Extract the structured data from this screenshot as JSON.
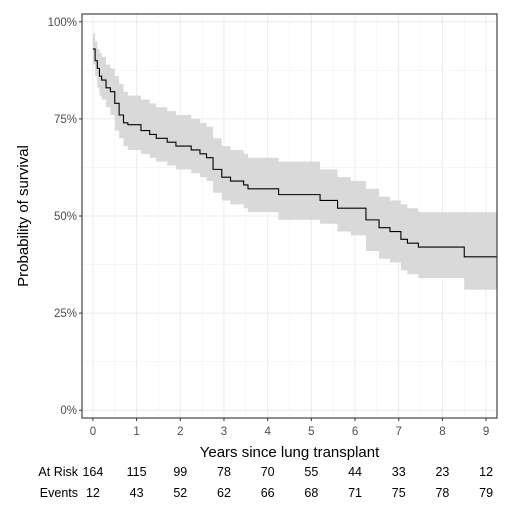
{
  "chart_data": {
    "type": "line",
    "subtype": "kaplan-meier survival curve with confidence band",
    "xlabel": "Years since lung transplant",
    "ylabel": "Probability of survival",
    "xlim": [
      -0.25,
      9.25
    ],
    "ylim": [
      -0.02,
      1.02
    ],
    "x_ticks": [
      0,
      1,
      2,
      3,
      4,
      5,
      6,
      7,
      8,
      9
    ],
    "y_ticks": [
      {
        "value": 0,
        "label": "0%"
      },
      {
        "value": 0.25,
        "label": "25%"
      },
      {
        "value": 0.5,
        "label": "50%"
      },
      {
        "value": 0.75,
        "label": "75%"
      },
      {
        "value": 1,
        "label": "100%"
      }
    ],
    "grid": true,
    "series": [
      {
        "color": "#000000",
        "ci_color": "#d9d9d9",
        "points": [
          {
            "t": 0.0,
            "s": 0.93,
            "lo": 0.89,
            "hi": 0.97
          },
          {
            "t": 0.05,
            "s": 0.9,
            "lo": 0.86,
            "hi": 0.95
          },
          {
            "t": 0.1,
            "s": 0.88,
            "lo": 0.83,
            "hi": 0.93
          },
          {
            "t": 0.15,
            "s": 0.86,
            "lo": 0.81,
            "hi": 0.92
          },
          {
            "t": 0.2,
            "s": 0.85,
            "lo": 0.8,
            "hi": 0.91
          },
          {
            "t": 0.3,
            "s": 0.83,
            "lo": 0.78,
            "hi": 0.89
          },
          {
            "t": 0.4,
            "s": 0.82,
            "lo": 0.76,
            "hi": 0.88
          },
          {
            "t": 0.5,
            "s": 0.79,
            "lo": 0.72,
            "hi": 0.86
          },
          {
            "t": 0.6,
            "s": 0.76,
            "lo": 0.7,
            "hi": 0.84
          },
          {
            "t": 0.7,
            "s": 0.74,
            "lo": 0.68,
            "hi": 0.82
          },
          {
            "t": 0.8,
            "s": 0.735,
            "lo": 0.67,
            "hi": 0.81
          },
          {
            "t": 1.1,
            "s": 0.72,
            "lo": 0.66,
            "hi": 0.8
          },
          {
            "t": 1.3,
            "s": 0.71,
            "lo": 0.65,
            "hi": 0.79
          },
          {
            "t": 1.45,
            "s": 0.7,
            "lo": 0.64,
            "hi": 0.78
          },
          {
            "t": 1.7,
            "s": 0.69,
            "lo": 0.63,
            "hi": 0.77
          },
          {
            "t": 1.9,
            "s": 0.68,
            "lo": 0.62,
            "hi": 0.76
          },
          {
            "t": 2.25,
            "s": 0.67,
            "lo": 0.61,
            "hi": 0.75
          },
          {
            "t": 2.45,
            "s": 0.66,
            "lo": 0.6,
            "hi": 0.74
          },
          {
            "t": 2.6,
            "s": 0.65,
            "lo": 0.59,
            "hi": 0.73
          },
          {
            "t": 2.75,
            "s": 0.62,
            "lo": 0.56,
            "hi": 0.7
          },
          {
            "t": 2.95,
            "s": 0.6,
            "lo": 0.54,
            "hi": 0.68
          },
          {
            "t": 3.15,
            "s": 0.59,
            "lo": 0.53,
            "hi": 0.67
          },
          {
            "t": 3.45,
            "s": 0.58,
            "lo": 0.52,
            "hi": 0.66
          },
          {
            "t": 3.55,
            "s": 0.57,
            "lo": 0.51,
            "hi": 0.65
          },
          {
            "t": 4.25,
            "s": 0.555,
            "lo": 0.49,
            "hi": 0.64
          },
          {
            "t": 5.0,
            "s": 0.555,
            "lo": 0.49,
            "hi": 0.64
          },
          {
            "t": 5.2,
            "s": 0.54,
            "lo": 0.48,
            "hi": 0.62
          },
          {
            "t": 5.6,
            "s": 0.52,
            "lo": 0.46,
            "hi": 0.6
          },
          {
            "t": 5.9,
            "s": 0.52,
            "lo": 0.45,
            "hi": 0.59
          },
          {
            "t": 6.25,
            "s": 0.49,
            "lo": 0.41,
            "hi": 0.57
          },
          {
            "t": 6.55,
            "s": 0.47,
            "lo": 0.39,
            "hi": 0.55
          },
          {
            "t": 6.8,
            "s": 0.46,
            "lo": 0.38,
            "hi": 0.54
          },
          {
            "t": 7.05,
            "s": 0.44,
            "lo": 0.36,
            "hi": 0.53
          },
          {
            "t": 7.2,
            "s": 0.43,
            "lo": 0.35,
            "hi": 0.52
          },
          {
            "t": 7.45,
            "s": 0.42,
            "lo": 0.34,
            "hi": 0.51
          },
          {
            "t": 8.5,
            "s": 0.395,
            "lo": 0.31,
            "hi": 0.51
          },
          {
            "t": 9.25,
            "s": 0.395,
            "lo": 0.31,
            "hi": 0.51
          }
        ]
      }
    ],
    "risk_table": {
      "rows": [
        {
          "label": "At Risk",
          "values": [
            164,
            115,
            99,
            78,
            70,
            55,
            44,
            33,
            23,
            12
          ]
        },
        {
          "label": "Events",
          "values": [
            12,
            43,
            52,
            62,
            66,
            68,
            71,
            75,
            78,
            79
          ]
        }
      ]
    }
  }
}
